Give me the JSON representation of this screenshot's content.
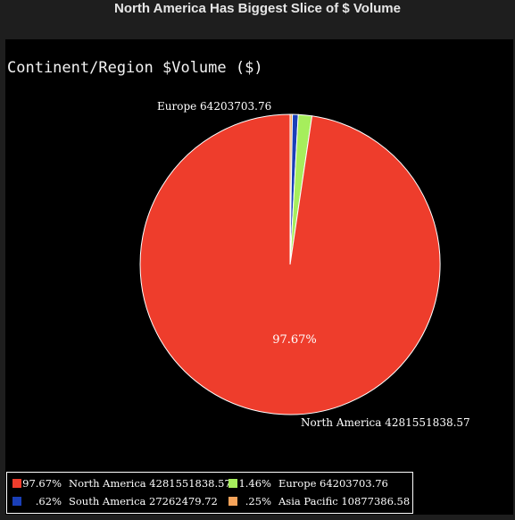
{
  "window": {
    "title": "North America Has Biggest Slice of $ Volume"
  },
  "chart_data": {
    "type": "pie",
    "title": "Continent/Region $Volume ($)",
    "categories": [
      "North America",
      "Europe",
      "South America",
      "Asia Pacific"
    ],
    "values": [
      4281551838.57,
      64203703.76,
      27262479.72,
      10877386.58
    ],
    "value_labels": [
      "4281551838.57",
      "64203703.76",
      "27262479.72",
      "10877386.58"
    ],
    "percent_labels": [
      "97.67%",
      "1.46%",
      ".62%",
      ".25%"
    ],
    "colors": [
      "#ee3d2c",
      "#a6ee5c",
      "#1a3fb8",
      "#f5a35a"
    ],
    "start_angle_deg": 0,
    "direction": "clockwise",
    "slice_annotations": [
      {
        "text": "Europe 64203703.76",
        "category": "Europe"
      },
      {
        "text": "North America 4281551838.57",
        "category": "North America"
      }
    ],
    "center_annotation": "97.67%",
    "legend": {
      "placement": "bottom-left",
      "columns": 2
    }
  }
}
